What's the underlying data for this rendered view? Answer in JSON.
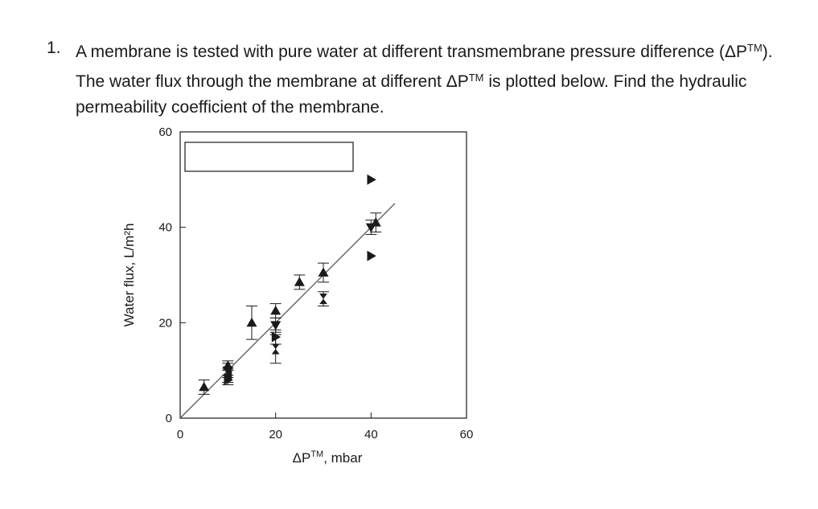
{
  "question": {
    "number": "1.",
    "part1": "A membrane is tested with pure water at different transmembrane pressure difference (ΔP",
    "sup1": "TM",
    "part2": "). The water flux through the membrane at different ΔP",
    "sup2": "TM",
    "part3": " is plotted below. Find the hydraulic permeability coefficient of the membrane."
  },
  "chart_data": {
    "type": "scatter",
    "xlabel_main": "ΔP",
    "xlabel_sup": "TM",
    "xlabel_rest": ", mbar",
    "ylabel": "Water flux, L/m²h",
    "xlim": [
      0,
      60
    ],
    "ylim": [
      0,
      60
    ],
    "xticks": [
      0,
      20,
      40,
      60
    ],
    "yticks": [
      0,
      20,
      40,
      60
    ],
    "grid": false,
    "legend": "blank box, top-left",
    "fit_line": {
      "x": [
        0,
        45
      ],
      "y": [
        0,
        45
      ]
    },
    "points": [
      {
        "x": 5,
        "y": 6.5,
        "err": 1.5,
        "m": "up"
      },
      {
        "x": 10,
        "y": 8,
        "err": 1,
        "m": "right"
      },
      {
        "x": 10,
        "y": 9,
        "err": 1.5,
        "m": "left"
      },
      {
        "x": 10,
        "y": 10,
        "err": 1.5,
        "m": "down"
      },
      {
        "x": 10,
        "y": 11,
        "err": 1,
        "m": "up"
      },
      {
        "x": 15,
        "y": 20,
        "err": 3.5,
        "m": "up"
      },
      {
        "x": 20,
        "y": 14.5,
        "err": 3,
        "m": "bowtie"
      },
      {
        "x": 20,
        "y": 17,
        "err": 1.5,
        "m": "right"
      },
      {
        "x": 20,
        "y": 19.5,
        "err": 1.5,
        "m": "down"
      },
      {
        "x": 20,
        "y": 22.5,
        "err": 1.5,
        "m": "up"
      },
      {
        "x": 25,
        "y": 28.5,
        "err": 1.5,
        "m": "up"
      },
      {
        "x": 30,
        "y": 25,
        "err": 1.5,
        "m": "bowtie"
      },
      {
        "x": 30,
        "y": 30.5,
        "err": 2,
        "m": "up"
      },
      {
        "x": 40,
        "y": 34,
        "err": 0,
        "m": "right"
      },
      {
        "x": 40,
        "y": 40,
        "err": 1.5,
        "m": "down"
      },
      {
        "x": 41,
        "y": 41,
        "err": 2,
        "m": "up"
      },
      {
        "x": 40,
        "y": 50,
        "err": 0,
        "m": "right"
      }
    ]
  },
  "colors": {
    "ink": "#1a1a1a",
    "line": "#555555"
  }
}
